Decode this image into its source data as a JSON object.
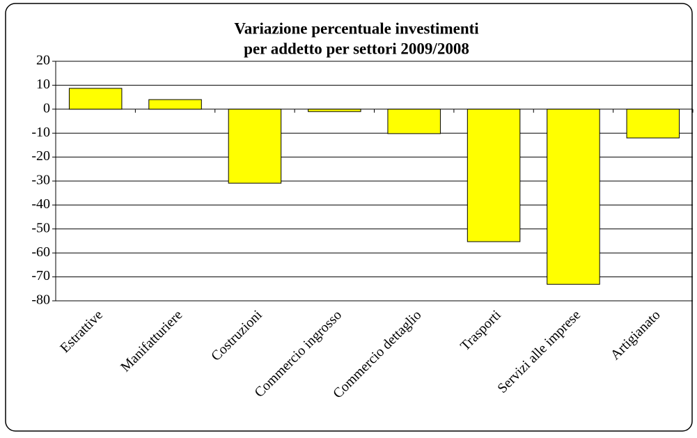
{
  "chart_data": {
    "type": "bar",
    "title": [
      "Variazione percentuale  investimenti",
      "per addetto per settori 2009/2008"
    ],
    "categories": [
      "Estrattive",
      "Manifatturiere",
      "Costruzioni",
      "Commercio ingrosso",
      "Commercio dettaglio",
      "Trasporti",
      "Servizi alle imprese",
      "Artigianato"
    ],
    "values": [
      8.7,
      4.0,
      -30.9,
      -1.0,
      -10.2,
      -55.3,
      -73.1,
      -12.0
    ],
    "color": "#ffff00",
    "ylim": [
      -80,
      20
    ],
    "yticks": [
      -80,
      -70,
      -60,
      -50,
      -40,
      -30,
      -20,
      -10,
      0,
      10,
      20
    ],
    "grid": true
  }
}
